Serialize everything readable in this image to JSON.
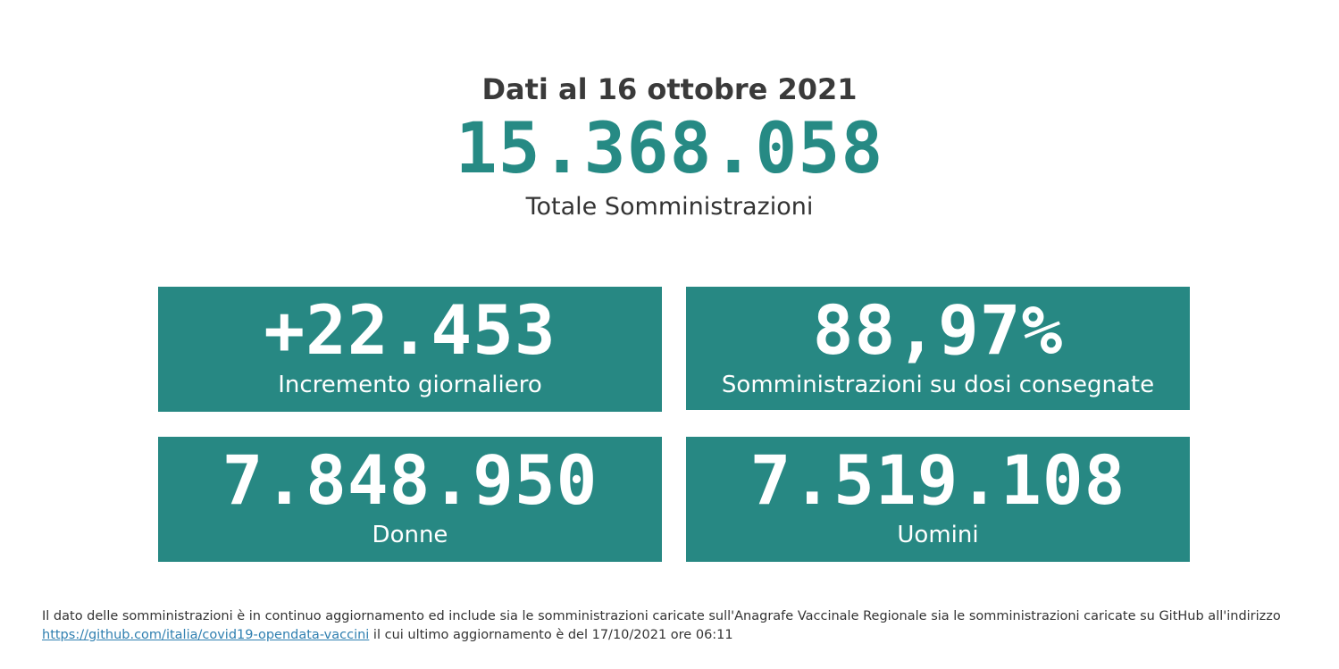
{
  "header": {
    "date_title": "Dati al 16 ottobre 2021",
    "total_value": "15.368.058",
    "total_label": "Totale Somministrazioni"
  },
  "cards": [
    {
      "value": "+22.453",
      "label": "Incremento giornaliero"
    },
    {
      "value": "88,97%",
      "label": "Somministrazioni su dosi consegnate"
    },
    {
      "value": "7.848.950",
      "label": "Donne"
    },
    {
      "value": "7.519.108",
      "label": "Uomini"
    }
  ],
  "footnote": {
    "text_before": "Il dato delle somministrazioni è in continuo aggiornamento ed include sia le somministrazioni caricate sull'Anagrafe Vaccinale Regionale sia le somministrazioni caricate su GitHub all'indirizzo",
    "link_text": "https://github.com/italia/covid19-opendata-vaccini",
    "text_after": " il cui ultimo aggiornamento è del 17/10/2021 ore 06:11"
  },
  "colors": {
    "accent": "#278883",
    "total_value": "#268a84",
    "link": "#2f7fb0"
  }
}
